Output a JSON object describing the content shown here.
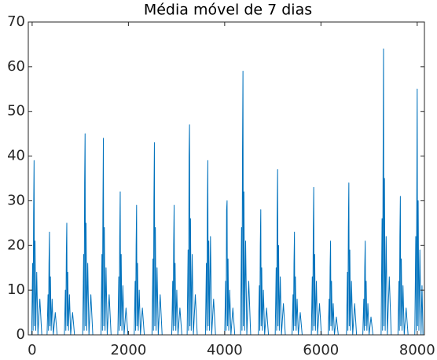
{
  "chart_data": {
    "type": "line",
    "title": "Média móvel de 7 dias",
    "xlim": [
      -80,
      8150
    ],
    "xticks": [
      0,
      2000,
      4000,
      6000,
      8000
    ],
    "ylim": [
      0,
      70
    ],
    "yticks": [
      0,
      10,
      20,
      30,
      40,
      50,
      60,
      70
    ],
    "series": [
      {
        "name": "Média móvel",
        "color": "#0072BD",
        "x": [
          -10,
          10,
          20,
          30,
          40,
          48,
          60,
          75,
          95,
          120,
          160,
          200,
          310,
          330,
          340,
          350,
          360,
          368,
          380,
          395,
          415,
          440,
          480,
          520,
          670,
          690,
          700,
          710,
          720,
          728,
          740,
          755,
          775,
          800,
          840,
          880,
          1050,
          1070,
          1080,
          1090,
          1100,
          1108,
          1120,
          1135,
          1155,
          1180,
          1220,
          1260,
          1430,
          1450,
          1460,
          1470,
          1480,
          1488,
          1500,
          1515,
          1535,
          1560,
          1600,
          1640,
          1780,
          1800,
          1810,
          1820,
          1830,
          1838,
          1850,
          1865,
          1885,
          1910,
          1950,
          1990,
          2120,
          2140,
          2150,
          2160,
          2170,
          2178,
          2190,
          2205,
          2225,
          2250,
          2290,
          2330,
          2490,
          2510,
          2520,
          2530,
          2540,
          2548,
          2560,
          2575,
          2595,
          2620,
          2660,
          2700,
          2900,
          2920,
          2930,
          2940,
          2950,
          2958,
          2970,
          2985,
          3005,
          3030,
          3070,
          3110,
          3220,
          3240,
          3250,
          3260,
          3270,
          3278,
          3290,
          3305,
          3325,
          3350,
          3390,
          3430,
          3600,
          3620,
          3630,
          3640,
          3650,
          3658,
          3670,
          3685,
          3705,
          3730,
          3770,
          3810,
          4000,
          4020,
          4030,
          4040,
          4050,
          4058,
          4070,
          4085,
          4105,
          4130,
          4170,
          4210,
          4330,
          4350,
          4360,
          4370,
          4380,
          4388,
          4400,
          4415,
          4435,
          4460,
          4500,
          4540,
          4700,
          4720,
          4730,
          4740,
          4750,
          4758,
          4770,
          4785,
          4805,
          4830,
          4870,
          4910,
          5050,
          5070,
          5080,
          5090,
          5100,
          5108,
          5120,
          5135,
          5155,
          5180,
          5220,
          5260,
          5400,
          5420,
          5430,
          5440,
          5450,
          5458,
          5470,
          5485,
          5505,
          5530,
          5570,
          5610,
          5800,
          5820,
          5830,
          5840,
          5850,
          5858,
          5870,
          5885,
          5905,
          5930,
          5970,
          6010,
          6150,
          6170,
          6180,
          6190,
          6200,
          6208,
          6220,
          6235,
          6255,
          6280,
          6320,
          6360,
          6530,
          6550,
          6560,
          6570,
          6580,
          6588,
          6600,
          6615,
          6635,
          6660,
          6700,
          6740,
          6870,
          6890,
          6900,
          6910,
          6920,
          6928,
          6940,
          6955,
          6975,
          7000,
          7040,
          7080,
          7250,
          7270,
          7280,
          7290,
          7300,
          7308,
          7320,
          7335,
          7355,
          7380,
          7420,
          7460,
          7600,
          7620,
          7630,
          7640,
          7650,
          7658,
          7670,
          7685,
          7705,
          7730,
          7770,
          7810,
          7950,
          7970,
          7980,
          7990,
          8000,
          8008,
          8020,
          8035,
          8055,
          8080,
          8100,
          8120
        ],
        "values": [
          0,
          16,
          1,
          27,
          39,
          2,
          21,
          1,
          14,
          0,
          8,
          0,
          0,
          9,
          1,
          16,
          23,
          2,
          13,
          1,
          8,
          0,
          5,
          0,
          0,
          10,
          1,
          18,
          25,
          2,
          14,
          1,
          9,
          0,
          5,
          0,
          0,
          18,
          1,
          34,
          45,
          2,
          25,
          1,
          16,
          0,
          9,
          0,
          0,
          18,
          1,
          28,
          44,
          2,
          24,
          1,
          15,
          0,
          9,
          0,
          0,
          13,
          1,
          22,
          32,
          2,
          18,
          1,
          11,
          0,
          6,
          0,
          0,
          12,
          1,
          20,
          29,
          2,
          16,
          1,
          10,
          0,
          6,
          0,
          0,
          17,
          1,
          30,
          43,
          2,
          24,
          1,
          15,
          0,
          9,
          0,
          0,
          12,
          1,
          20,
          29,
          2,
          16,
          1,
          10,
          0,
          6,
          0,
          0,
          19,
          1,
          40,
          47,
          2,
          26,
          1,
          18,
          0,
          9,
          0,
          0,
          16,
          1,
          27,
          39,
          2,
          21,
          1,
          22,
          0,
          8,
          0,
          0,
          12,
          1,
          28,
          30,
          2,
          17,
          1,
          10,
          0,
          6,
          0,
          0,
          24,
          1,
          41,
          59,
          2,
          32,
          1,
          21,
          0,
          12,
          0,
          0,
          11,
          1,
          20,
          28,
          2,
          15,
          1,
          10,
          0,
          6,
          0,
          0,
          15,
          1,
          26,
          37,
          2,
          20,
          1,
          13,
          0,
          7,
          0,
          0,
          9,
          1,
          16,
          23,
          2,
          13,
          1,
          8,
          0,
          5,
          0,
          0,
          13,
          1,
          23,
          33,
          2,
          18,
          1,
          12,
          0,
          7,
          0,
          0,
          8,
          1,
          15,
          21,
          2,
          12,
          1,
          7,
          0,
          4,
          0,
          0,
          14,
          1,
          24,
          34,
          2,
          19,
          1,
          12,
          0,
          7,
          0,
          0,
          8,
          1,
          15,
          21,
          2,
          12,
          1,
          7,
          0,
          4,
          0,
          0,
          26,
          1,
          35,
          64,
          2,
          35,
          1,
          22,
          0,
          13,
          0,
          0,
          12,
          1,
          22,
          31,
          2,
          17,
          1,
          11,
          0,
          6,
          0,
          0,
          22,
          1,
          27,
          55,
          2,
          30,
          1,
          19,
          0,
          11,
          0
        ]
      }
    ]
  }
}
